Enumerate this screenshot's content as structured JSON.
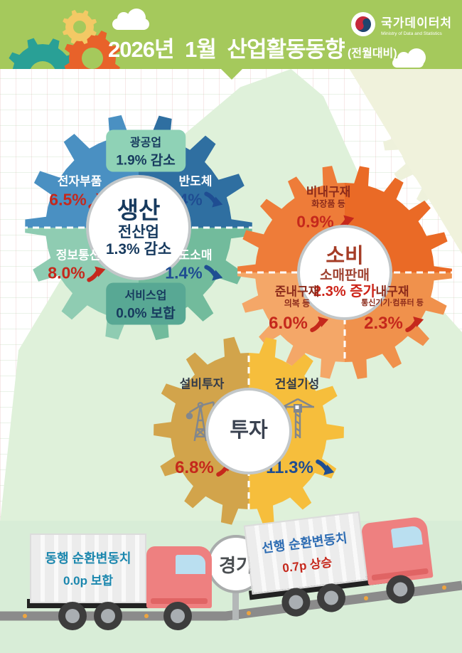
{
  "header": {
    "title": "2026년 1월 산업활동동향",
    "subtitle": "(전월대비)",
    "agency": "국가데이터처",
    "agency_sub": "Ministry of Data and Statistics"
  },
  "production": {
    "name": "생산",
    "total_label": "전산업",
    "total_value": "1.3% 감소",
    "mining": {
      "label": "광공업",
      "value": "1.9% 감소"
    },
    "services": {
      "label": "서비스업",
      "value": "0.0% 보합"
    },
    "items": [
      {
        "label": "전자부품",
        "value": "6.5%",
        "direction": "up"
      },
      {
        "label": "반도체",
        "value": "4.4%",
        "direction": "down"
      },
      {
        "label": "정보통신",
        "value": "8.0%",
        "direction": "up"
      },
      {
        "label": "도소매",
        "value": "1.4%",
        "direction": "down"
      }
    ]
  },
  "consumption": {
    "name": "소비",
    "total_label": "소매판매",
    "total_value": "2.3% 증가",
    "items": [
      {
        "label": "비내구재",
        "sub": "화장품 등",
        "value": "0.9%",
        "direction": "up"
      },
      {
        "label": "준내구재",
        "sub": "의복 등",
        "value": "6.0%",
        "direction": "up"
      },
      {
        "label": "내구재",
        "sub": "통신기기·컴퓨터 등",
        "value": "2.3%",
        "direction": "up"
      }
    ]
  },
  "investment": {
    "name": "투자",
    "items": [
      {
        "label": "설비투자",
        "value": "6.8%",
        "direction": "up"
      },
      {
        "label": "건설기성",
        "value": "11.3%",
        "direction": "down"
      }
    ]
  },
  "economy": {
    "sign_label": "경기",
    "coincident": {
      "label": "동행 순환변동치",
      "value": "0.0p 보합"
    },
    "leading": {
      "label": "선행 순환변동치",
      "value": "0.7p 상승"
    }
  },
  "colors": {
    "header_green": "#a5c95c",
    "production_blue": "#2f6fa1",
    "production_green": "#72bb9c",
    "consumption_orange": "#ed7231",
    "investment_yellow": "#f6be3c",
    "up_red": "#c5281c",
    "down_navy": "#1f4d92",
    "band_green": "#d8edd7"
  }
}
